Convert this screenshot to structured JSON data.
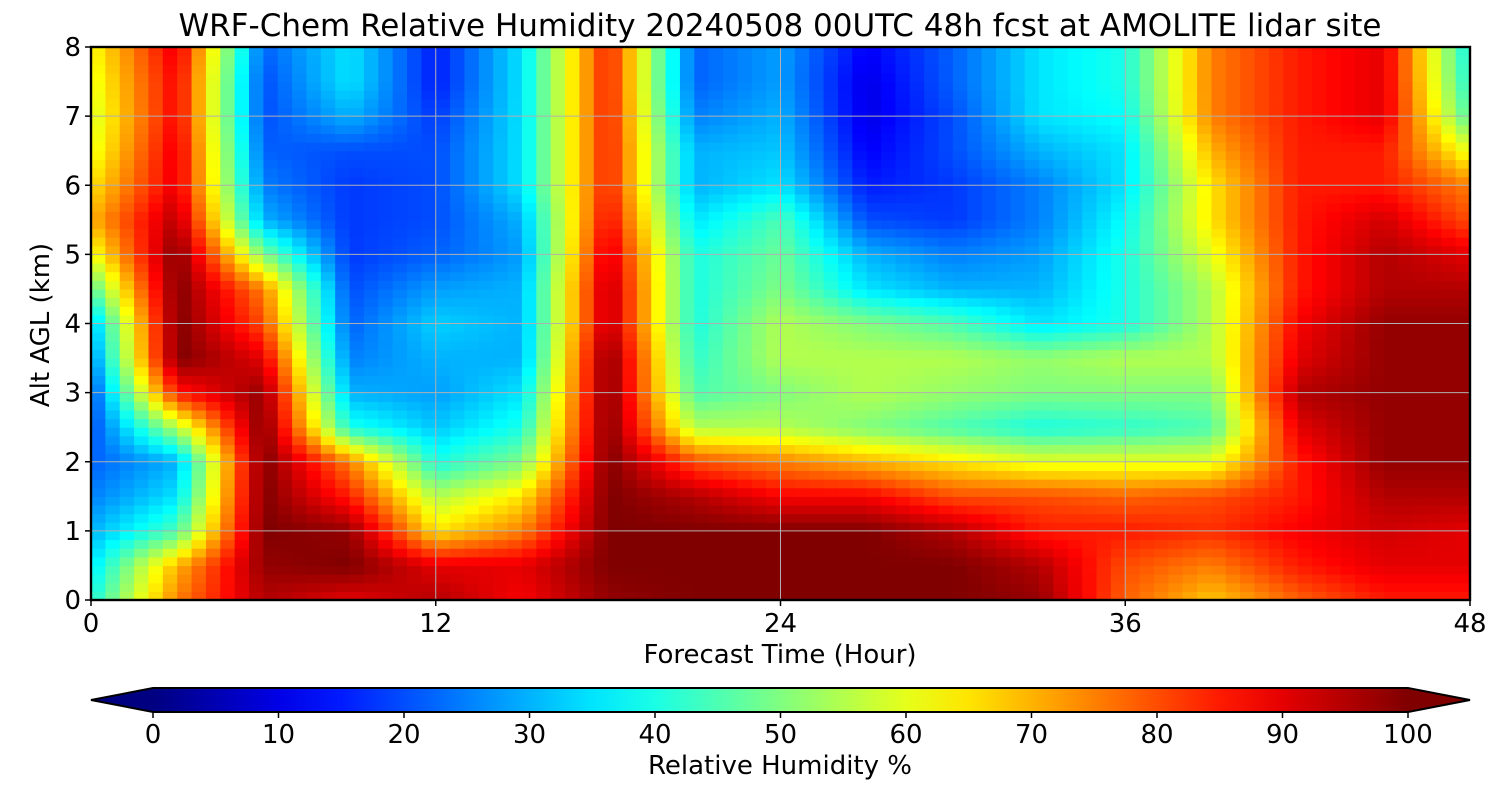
{
  "chart_data": {
    "type": "heatmap",
    "title": "WRF-Chem Relative Humidity 20240508 00UTC 48h fcst at AMOLITE lidar site",
    "xlabel": "Forecast Time (Hour)",
    "ylabel": "Alt AGL (km)",
    "xlim": [
      0,
      48
    ],
    "ylim": [
      0,
      8
    ],
    "xticks": [
      0,
      12,
      24,
      36,
      48
    ],
    "yticks": [
      0,
      1,
      2,
      3,
      4,
      5,
      6,
      7,
      8
    ],
    "grid": true,
    "colorbar": {
      "label": "Relative Humidity %",
      "ticks": [
        0,
        10,
        20,
        30,
        40,
        50,
        60,
        70,
        80,
        90,
        100
      ],
      "range": [
        0,
        100
      ],
      "extend": "both",
      "colormap": "jet"
    },
    "x_hours": [
      0,
      3,
      6,
      9,
      12,
      15,
      18,
      21,
      24,
      27,
      30,
      33,
      36,
      39,
      42,
      45,
      48
    ],
    "z_km": [
      0,
      0.5,
      1,
      1.5,
      2,
      2.5,
      3,
      3.5,
      4,
      4.5,
      5,
      5.5,
      6,
      6.5,
      7,
      7.5,
      8
    ],
    "values": [
      [
        40,
        75,
        95,
        90,
        95,
        88,
        98,
        100,
        100,
        100,
        100,
        98,
        78,
        68,
        78,
        85,
        85
      ],
      [
        35,
        70,
        98,
        100,
        90,
        90,
        100,
        100,
        100,
        100,
        100,
        95,
        80,
        75,
        85,
        90,
        90
      ],
      [
        30,
        45,
        100,
        98,
        65,
        75,
        100,
        100,
        100,
        100,
        95,
        85,
        85,
        83,
        88,
        92,
        90
      ],
      [
        25,
        35,
        100,
        85,
        55,
        65,
        100,
        95,
        88,
        88,
        80,
        80,
        78,
        80,
        85,
        95,
        95
      ],
      [
        22,
        30,
        100,
        75,
        40,
        50,
        100,
        80,
        75,
        70,
        65,
        60,
        60,
        60,
        85,
        98,
        98
      ],
      [
        20,
        55,
        100,
        40,
        32,
        40,
        100,
        55,
        55,
        50,
        45,
        40,
        42,
        45,
        90,
        98,
        98
      ],
      [
        20,
        85,
        98,
        30,
        28,
        35,
        100,
        45,
        50,
        55,
        52,
        50,
        50,
        50,
        95,
        98,
        98
      ],
      [
        25,
        100,
        90,
        25,
        30,
        30,
        100,
        42,
        55,
        55,
        55,
        52,
        55,
        55,
        90,
        98,
        98
      ],
      [
        30,
        100,
        80,
        22,
        33,
        30,
        95,
        40,
        55,
        50,
        45,
        35,
        40,
        55,
        88,
        98,
        98
      ],
      [
        45,
        100,
        75,
        20,
        28,
        30,
        95,
        40,
        50,
        35,
        30,
        30,
        40,
        55,
        85,
        95,
        95
      ],
      [
        60,
        100,
        50,
        18,
        22,
        28,
        92,
        40,
        48,
        30,
        25,
        28,
        40,
        60,
        85,
        95,
        90
      ],
      [
        70,
        95,
        30,
        18,
        20,
        30,
        88,
        35,
        45,
        20,
        18,
        25,
        38,
        65,
        85,
        92,
        80
      ],
      [
        65,
        90,
        25,
        18,
        20,
        35,
        85,
        30,
        35,
        15,
        18,
        25,
        35,
        65,
        85,
        85,
        75
      ],
      [
        60,
        90,
        22,
        20,
        20,
        35,
        85,
        30,
        32,
        12,
        20,
        30,
        35,
        70,
        85,
        85,
        60
      ],
      [
        58,
        88,
        20,
        30,
        18,
        35,
        85,
        25,
        30,
        10,
        20,
        35,
        38,
        75,
        85,
        90,
        45
      ],
      [
        60,
        88,
        20,
        35,
        15,
        35,
        85,
        22,
        28,
        10,
        22,
        35,
        40,
        75,
        85,
        90,
        40
      ],
      [
        62,
        90,
        22,
        35,
        15,
        35,
        85,
        22,
        28,
        12,
        22,
        35,
        40,
        75,
        85,
        90,
        38
      ]
    ]
  }
}
